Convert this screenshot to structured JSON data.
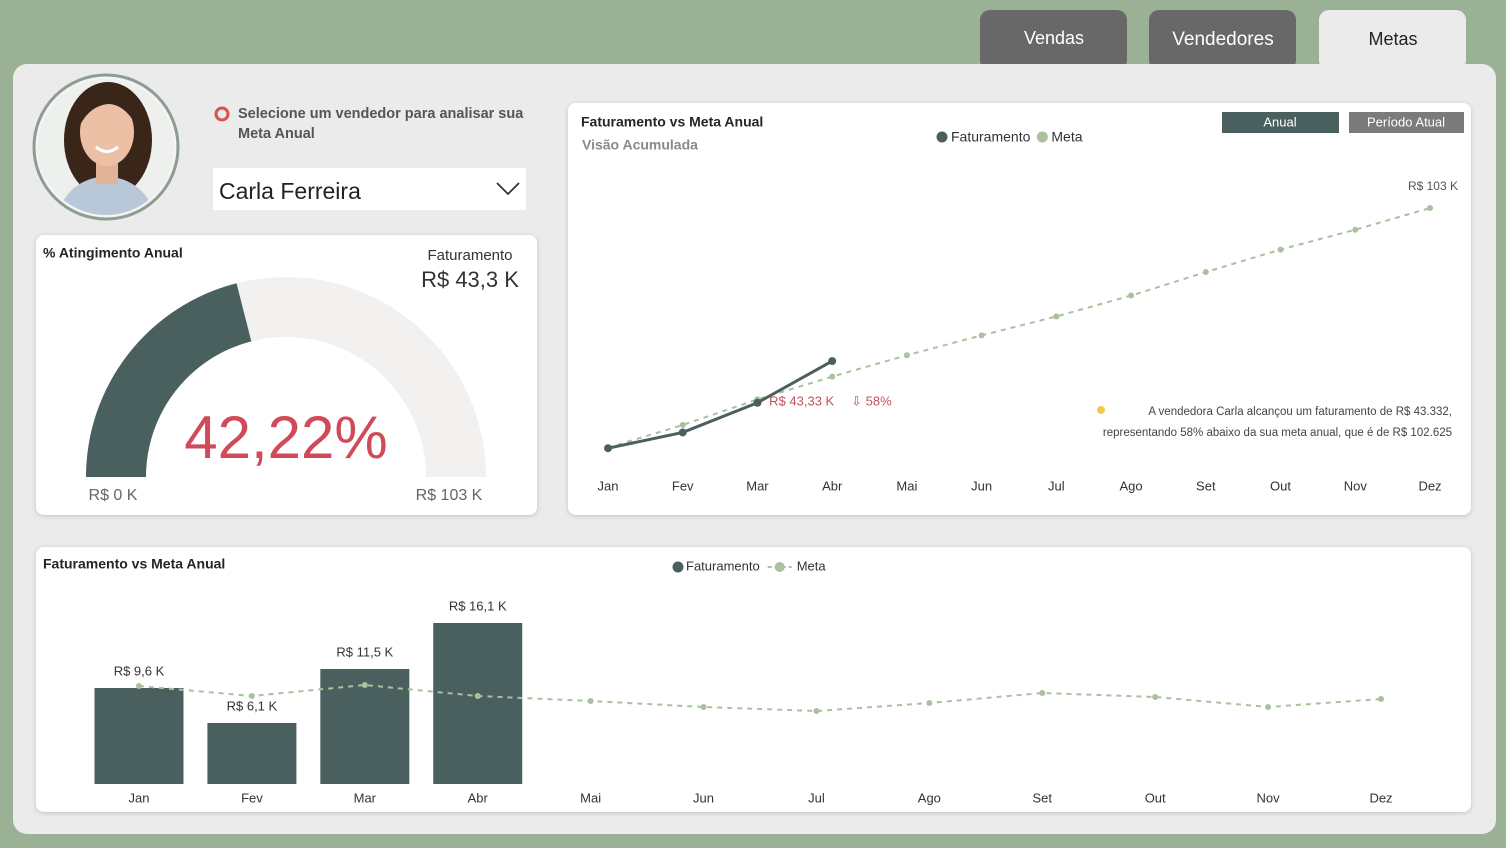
{
  "tabs": [
    "Vendas",
    "Vendedores",
    "Metas"
  ],
  "selector": {
    "prompt": "Selecione um vendedor para analisar sua Meta Anual",
    "selected": "Carla Ferreira"
  },
  "gauge": {
    "title": "% Atingimento Anual",
    "value": 42.22,
    "value_label": "42,22%",
    "min": {
      "value": 0,
      "label": "R$ 0 K"
    },
    "max": {
      "value": 103,
      "label": "R$ 103 K"
    },
    "revenue_title": "Faturamento",
    "revenue": 43.3,
    "revenue_label": "R$ 43,3 K",
    "color": "#4a605f"
  },
  "chart_data": [
    {
      "type": "line",
      "title": "Faturamento vs Meta Anual",
      "subtitle": "Visão Acumulada",
      "buttons": [
        "Anual",
        "Período Atual"
      ],
      "categories": [
        "Jan",
        "Fev",
        "Mar",
        "Abr",
        "Mai",
        "Jun",
        "Jul",
        "Ago",
        "Set",
        "Out",
        "Nov",
        "Dez"
      ],
      "series": [
        {
          "name": "Faturamento",
          "color": "#4a605f",
          "values": [
            9.6,
            15.7,
            27.2,
            43.33,
            null,
            null,
            null,
            null,
            null,
            null,
            null,
            null
          ],
          "value_labels": [
            null,
            null,
            null,
            "R$ 43,33 K",
            null,
            null,
            null,
            null,
            null,
            null,
            null,
            null
          ]
        },
        {
          "name": "Meta",
          "color": "#a9c19f",
          "dashed": true,
          "values": [
            9.8,
            18.6,
            28.5,
            37.3,
            45.6,
            53.3,
            60.6,
            68.7,
            77.8,
            86.5,
            94.2,
            102.6
          ],
          "value_labels": [
            null,
            null,
            null,
            null,
            null,
            null,
            null,
            null,
            null,
            null,
            null,
            "R$ 103 K"
          ]
        }
      ],
      "annotations": [
        "⇩ 58%",
        "A vendedora Carla alcançou um faturamento de  R$ 43.332, representando 58% abaixo da sua meta anual, que é de R$ 102.625"
      ]
    },
    {
      "type": "bar",
      "title": "Faturamento vs Meta Anual",
      "categories": [
        "Jan",
        "Fev",
        "Mar",
        "Abr",
        "Mai",
        "Jun",
        "Jul",
        "Ago",
        "Set",
        "Out",
        "Nov",
        "Dez"
      ],
      "series": [
        {
          "name": "Faturamento",
          "color": "#4a605f",
          "values": [
            9.6,
            6.1,
            11.5,
            16.1,
            null,
            null,
            null,
            null,
            null,
            null,
            null,
            null
          ],
          "value_labels": [
            "R$ 9,6 K",
            "R$ 6,1 K",
            "R$ 11,5 K",
            "R$ 16,1 K",
            null,
            null,
            null,
            null,
            null,
            null,
            null,
            null
          ]
        },
        {
          "name": "Meta",
          "type": "line",
          "dashed": true,
          "color": "#a9c19f",
          "values": [
            9.8,
            8.8,
            9.9,
            8.8,
            8.3,
            7.7,
            7.3,
            8.1,
            9.1,
            8.7,
            7.7,
            8.5
          ]
        }
      ]
    }
  ]
}
